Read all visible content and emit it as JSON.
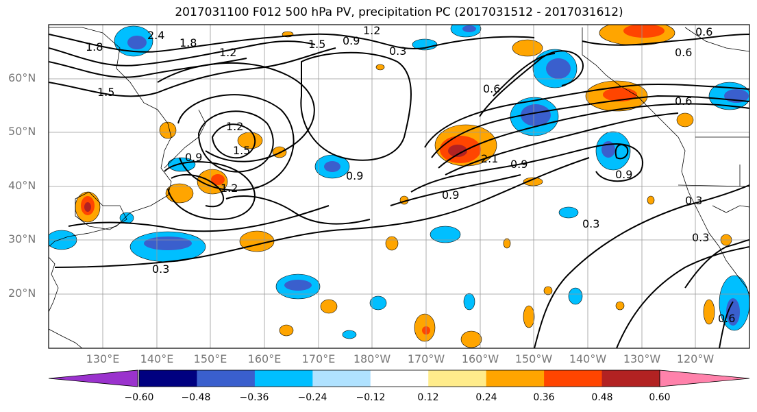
{
  "title": "2017031100 F012 500 hPa PV, precipitation PC (2017031512 - 2017031612)",
  "lat_labels": [
    "60°N",
    "50°N",
    "40°N",
    "30°N",
    "20°N"
  ],
  "lon_labels": [
    "130°E",
    "140°E",
    "150°E",
    "160°E",
    "170°E",
    "180°W",
    "170°W",
    "160°W",
    "150°W",
    "140°W",
    "130°W",
    "120°W"
  ],
  "colorbar": {
    "tick_labels": [
      "−0.60",
      "−0.48",
      "−0.36",
      "−0.24",
      "−0.12",
      "0.12",
      "0.24",
      "0.36",
      "0.48",
      "0.60"
    ],
    "colors": [
      "#9a32cd",
      "#000080",
      "#3a5fcd",
      "#00bfff",
      "#b0e2ff",
      "#ffffff",
      "#ffec8b",
      "#ffa500",
      "#ff4500",
      "#b22222",
      "#ff82ab"
    ]
  },
  "contour_labels": [
    "1.8",
    "2.4",
    "1.8",
    "1.2",
    "1.5",
    "0.9",
    "1.2",
    "0.3",
    "1.5",
    "0.6",
    "0.6",
    "0.6",
    "1.2",
    "1.5",
    "0.9",
    "1.2",
    "0.9",
    "2.1",
    "0.9",
    "0.9",
    "0.9",
    "0.3",
    "0.3",
    "0.3",
    "0.3",
    "0.6",
    "0.6"
  ]
}
